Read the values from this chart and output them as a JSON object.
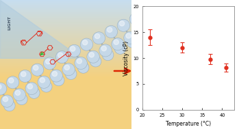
{
  "temperatures": [
    22,
    30,
    37,
    41
  ],
  "viscosities": [
    14.0,
    12.0,
    9.8,
    8.2
  ],
  "errors_up": [
    1.5,
    1.0,
    1.0,
    0.8
  ],
  "errors_down": [
    1.5,
    1.0,
    1.0,
    0.8
  ],
  "xlim": [
    20,
    43
  ],
  "ylim": [
    0,
    20
  ],
  "xticks": [
    20,
    25,
    30,
    35,
    40
  ],
  "yticks": [
    0,
    5,
    10,
    15,
    20
  ],
  "xlabel": "Temperature (°C)",
  "ylabel": "Viscosity (cP)",
  "dot_color": "#e03020",
  "error_color": "#e03020",
  "arrow_color": "#dd2200",
  "sphere_color": "#c5d8e8",
  "sphere_edge": "#9ab0c0",
  "tail_color": "#8899aa",
  "light_label": "LIGHT",
  "bg_blue": "#c8dff0",
  "bg_yellow": "#f5d080",
  "bg_pink": "#f0b8b8"
}
